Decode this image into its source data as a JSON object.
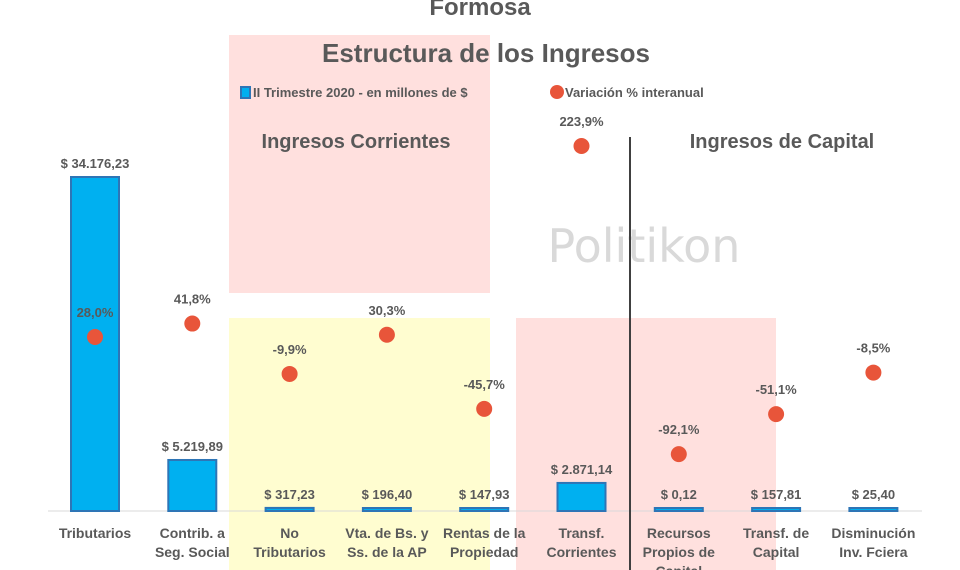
{
  "chart_data": {
    "type": "bar",
    "super_title": "Formosa",
    "title": "Estructura de los Ingresos",
    "watermark": "Politikon",
    "sections": [
      "Ingresos Corrientes",
      "Ingresos de Capital"
    ],
    "categories": [
      [
        "Tributarios"
      ],
      [
        "Contrib. a",
        "Seg. Social"
      ],
      [
        "No",
        "Tributarios"
      ],
      [
        "Vta. de Bs. y",
        "Ss. de la AP"
      ],
      [
        "Rentas de la",
        "Propiedad"
      ],
      [
        "Transf.",
        "Corrientes"
      ],
      [
        "Recursos",
        "Propios de",
        "Capital"
      ],
      [
        "Transf. de",
        "Capital"
      ],
      [
        "Disminución",
        "Inv. Fciera"
      ]
    ],
    "series": [
      {
        "name": "II Trimestre 2020 - en millones de $",
        "type": "bar",
        "color": "#00B0F0",
        "values": [
          34176.23,
          5219.89,
          317.23,
          196.4,
          147.93,
          2871.14,
          0.12,
          157.81,
          25.4
        ],
        "labels": [
          "$ 34.176,23",
          "$ 5.219,89",
          "$ 317,23",
          "$ 196,40",
          "$ 147,93",
          "$ 2.871,14",
          "$ 0,12",
          "$ 157,81",
          "$ 25,40"
        ]
      },
      {
        "name": "Variación % interanual",
        "type": "scatter",
        "color": "#E8553A",
        "values": [
          28.0,
          41.8,
          -9.9,
          30.3,
          -45.7,
          223.9,
          -92.1,
          -51.1,
          -8.5
        ],
        "labels": [
          "28,0%",
          "41,8%",
          "-9,9%",
          "30,3%",
          "-45,7%",
          "223,9%",
          "-92,1%",
          "-51,1%",
          "-8,5%"
        ]
      }
    ],
    "legend_position": "top",
    "grid": false
  }
}
